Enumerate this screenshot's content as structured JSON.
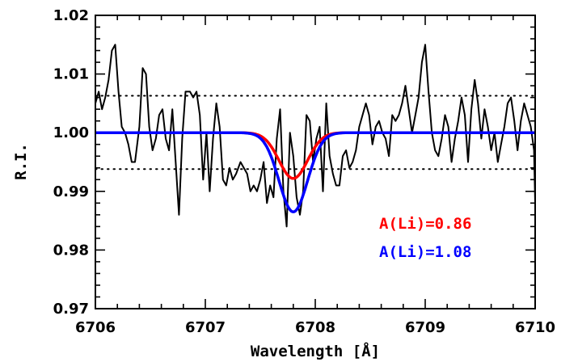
{
  "chart_data": {
    "type": "line",
    "title": "",
    "xlabel": "Wavelength [Å]",
    "ylabel": "R.I.",
    "xlim": [
      6706,
      6710
    ],
    "ylim": [
      0.97,
      1.02
    ],
    "x_ticks": [
      6706,
      6707,
      6708,
      6709,
      6710
    ],
    "x_tick_labels": [
      "6706",
      "6707",
      "6708",
      "6709",
      "6710"
    ],
    "y_ticks": [
      0.97,
      0.98,
      0.99,
      1.0,
      1.01,
      1.02
    ],
    "y_tick_labels": [
      "0.97",
      "0.98",
      "0.99",
      "1.00",
      "1.01",
      "1.02"
    ],
    "reference_lines": [
      1.0063,
      0.9938
    ],
    "observed": {
      "color": "#000000",
      "x": [
        6706.0,
        6706.03,
        6706.06,
        6706.09,
        6706.12,
        6706.15,
        6706.18,
        6706.21,
        6706.24,
        6706.27,
        6706.3,
        6706.33,
        6706.36,
        6706.4,
        6706.43,
        6706.46,
        6706.49,
        6706.52,
        6706.55,
        6706.58,
        6706.61,
        6706.64,
        6706.67,
        6706.7,
        6706.73,
        6706.76,
        6706.79,
        6706.82,
        6706.86,
        6706.89,
        6706.92,
        6706.95,
        6706.98,
        6707.01,
        6707.04,
        6707.07,
        6707.1,
        6707.13,
        6707.16,
        6707.19,
        6707.22,
        6707.25,
        6707.28,
        6707.32,
        6707.35,
        6707.38,
        6707.41,
        6707.44,
        6707.47,
        6707.5,
        6707.53,
        6707.56,
        6707.59,
        6707.62,
        6707.65,
        6707.68,
        6707.71,
        6707.74,
        6707.77,
        6707.8,
        6707.83,
        6707.86,
        6707.89,
        6707.92,
        6707.95,
        6707.98,
        6708.01,
        6708.04,
        6708.07,
        6708.1,
        6708.13,
        6708.16,
        6708.19,
        6708.22,
        6708.25,
        6708.28,
        6708.31,
        6708.34,
        6708.37,
        6708.4,
        6708.43,
        6708.46,
        6708.49,
        6708.52,
        6708.55,
        6708.58,
        6708.61,
        6708.64,
        6708.67,
        6708.7,
        6708.73,
        6708.76,
        6708.79,
        6708.82,
        6708.85,
        6708.88,
        6708.91,
        6708.94,
        6708.97,
        6709.0,
        6709.03,
        6709.06,
        6709.09,
        6709.12,
        6709.15,
        6709.18,
        6709.21,
        6709.24,
        6709.27,
        6709.3,
        6709.33,
        6709.36,
        6709.39,
        6709.42,
        6709.45,
        6709.48,
        6709.51,
        6709.54,
        6709.57,
        6709.6,
        6709.63,
        6709.66,
        6709.69,
        6709.72,
        6709.75,
        6709.78,
        6709.81,
        6709.84,
        6709.87,
        6709.9,
        6709.93,
        6709.96,
        6709.99,
        6710.0
      ],
      "y": [
        1.005,
        1.007,
        1.004,
        1.006,
        1.009,
        1.014,
        1.015,
        1.007,
        1.001,
        1.0,
        0.998,
        0.995,
        0.995,
        1.001,
        1.011,
        1.01,
        1.001,
        0.997,
        0.999,
        1.003,
        1.004,
        0.999,
        0.997,
        1.004,
        0.995,
        0.986,
        0.999,
        1.007,
        1.007,
        1.006,
        1.007,
        1.003,
        0.992,
        1.0,
        0.99,
        0.999,
        1.005,
        1.001,
        0.992,
        0.991,
        0.994,
        0.992,
        0.993,
        0.995,
        0.994,
        0.993,
        0.99,
        0.991,
        0.99,
        0.992,
        0.995,
        0.988,
        0.991,
        0.989,
        0.999,
        1.004,
        0.99,
        0.984,
        1.0,
        0.996,
        0.989,
        0.986,
        0.99,
        1.003,
        1.002,
        0.995,
        0.999,
        1.001,
        0.99,
        1.005,
        0.996,
        0.993,
        0.991,
        0.991,
        0.996,
        0.997,
        0.994,
        0.995,
        0.997,
        1.001,
        1.003,
        1.005,
        1.003,
        0.998,
        1.001,
        1.002,
        1.0,
        0.999,
        0.996,
        1.003,
        1.002,
        1.003,
        1.005,
        1.008,
        1.004,
        1.0,
        1.003,
        1.006,
        1.012,
        1.015,
        1.007,
        1.0,
        0.997,
        0.996,
        0.999,
        1.003,
        1.001,
        0.995,
        0.999,
        1.002,
        1.006,
        1.003,
        0.995,
        1.004,
        1.009,
        1.005,
        0.999,
        1.004,
        1.001,
        0.997,
        1.0,
        0.995,
        0.998,
        1.001,
        1.005,
        1.006,
        1.002,
        0.997,
        1.002,
        1.005,
        1.003,
        1.001,
        0.997,
        0.988
      ]
    },
    "series": [
      {
        "name": "A(Li)=0.86",
        "color": "#ff0000",
        "center": 6707.8,
        "depth": 0.0078,
        "sigma": 0.13
      },
      {
        "name": "A(Li)=1.08",
        "color": "#0000ff",
        "center": 6707.8,
        "depth": 0.0135,
        "sigma": 0.13
      }
    ],
    "annotations": [
      {
        "text": "A(Li)=0.86",
        "color": "#ff0000"
      },
      {
        "text": "A(Li)=1.08",
        "color": "#0000ff"
      }
    ]
  }
}
